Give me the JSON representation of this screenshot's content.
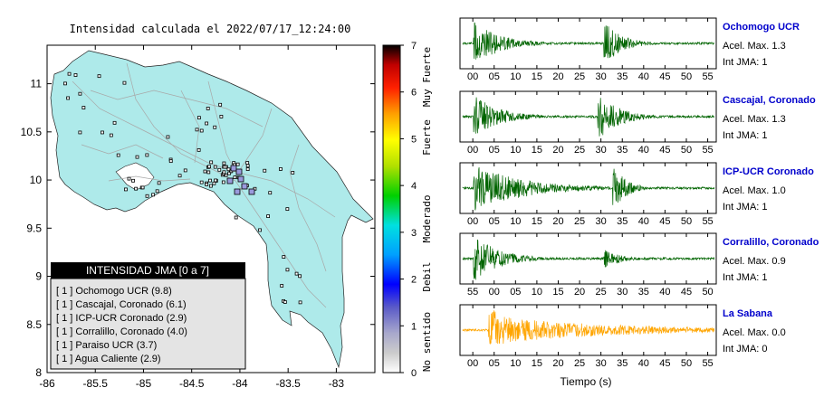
{
  "map": {
    "title": "Intensidad calculada el 2022/07/17_12:24:00",
    "x_ticks": [
      "-86",
      "-85.5",
      "-85",
      "-84.5",
      "-84",
      "-83.5",
      "-83"
    ],
    "y_ticks": [
      "11",
      "10.5",
      "10",
      "9.5",
      "9",
      "8.5",
      "8"
    ],
    "land_color": "#aeeaea",
    "legend": {
      "header": "INTENSIDAD JMA [0 a 7]",
      "items": [
        "[ 1 ]  Ochomogo UCR (9.8)",
        "[ 1 ]  Cascajal, Coronado (6.1)",
        "[ 1 ]  ICP-UCR Coronado (2.9)",
        "[ 1 ]  Corralillo, Coronado (4.0)",
        "[ 1 ]  Paraiso UCR (3.7)",
        "[ 1 ]  Agua Caliente (2.9)"
      ]
    }
  },
  "colorbar": {
    "ticks": [
      "7",
      "6",
      "5",
      "4",
      "3",
      "2",
      "1",
      "0"
    ],
    "labels": [
      "Muy Fuerte",
      "Fuerte",
      "Moderado",
      "Debil",
      "No sentido"
    ]
  },
  "chart_data": [
    {
      "type": "line",
      "station": "Ochomogo UCR",
      "accel": "Acel. Max. 1.3",
      "intensity": "Int JMA: 1",
      "color": "#006400",
      "x_ticks": [
        "00",
        "05",
        "10",
        "15",
        "20",
        "25",
        "30",
        "35",
        "40",
        "45",
        "50",
        "55"
      ],
      "xlim": [
        -3,
        57
      ],
      "bursts": [
        [
          0.5,
          1.0,
          6
        ],
        [
          31,
          0.95,
          4
        ]
      ]
    },
    {
      "type": "line",
      "station": "Cascajal, Coronado",
      "accel": "Acel. Max. 1.3",
      "intensity": "Int JMA: 1",
      "color": "#006400",
      "x_ticks": [
        "00",
        "05",
        "10",
        "15",
        "20",
        "25",
        "30",
        "35",
        "40",
        "45",
        "50",
        "55"
      ],
      "xlim": [
        -3,
        57
      ],
      "bursts": [
        [
          0.5,
          0.95,
          6
        ],
        [
          29.5,
          1.0,
          5
        ]
      ]
    },
    {
      "type": "line",
      "station": "ICP-UCR Coronado",
      "accel": "Acel. Max. 1.0",
      "intensity": "Int JMA: 1",
      "color": "#006400",
      "x_ticks": [
        "00",
        "05",
        "10",
        "15",
        "20",
        "25",
        "30",
        "35",
        "40",
        "45",
        "50",
        "55"
      ],
      "xlim": [
        -3,
        57
      ],
      "bursts": [
        [
          0.5,
          1.0,
          12
        ],
        [
          33,
          1.0,
          3
        ]
      ]
    },
    {
      "type": "line",
      "station": "Corralillo, Coronado",
      "accel": "Acel. Max. 0.9",
      "intensity": "Int JMA: 1",
      "color": "#006400",
      "x_ticks": [
        "55",
        "00",
        "05",
        "10",
        "15",
        "20",
        "25",
        "30",
        "35",
        "40",
        "45",
        "50"
      ],
      "xlim": [
        -3,
        57
      ],
      "bursts": [
        [
          0.5,
          1.0,
          6
        ],
        [
          31,
          0.4,
          4
        ]
      ]
    },
    {
      "type": "line",
      "station": "La Sabana",
      "accel": "Acel. Max. 0.0",
      "intensity": "Int JMA: 0",
      "color": "#ffa500",
      "x_ticks": [
        "00",
        "05",
        "10",
        "15",
        "20",
        "25",
        "30",
        "35",
        "40",
        "45",
        "50",
        "55"
      ],
      "xlim": [
        -3,
        57
      ],
      "bursts": [
        [
          4,
          1.0,
          8
        ],
        [
          10,
          0.5,
          30
        ]
      ]
    }
  ],
  "traces_xlabel": "Tiempo (s)",
  "station_name_color": "#0000cc"
}
